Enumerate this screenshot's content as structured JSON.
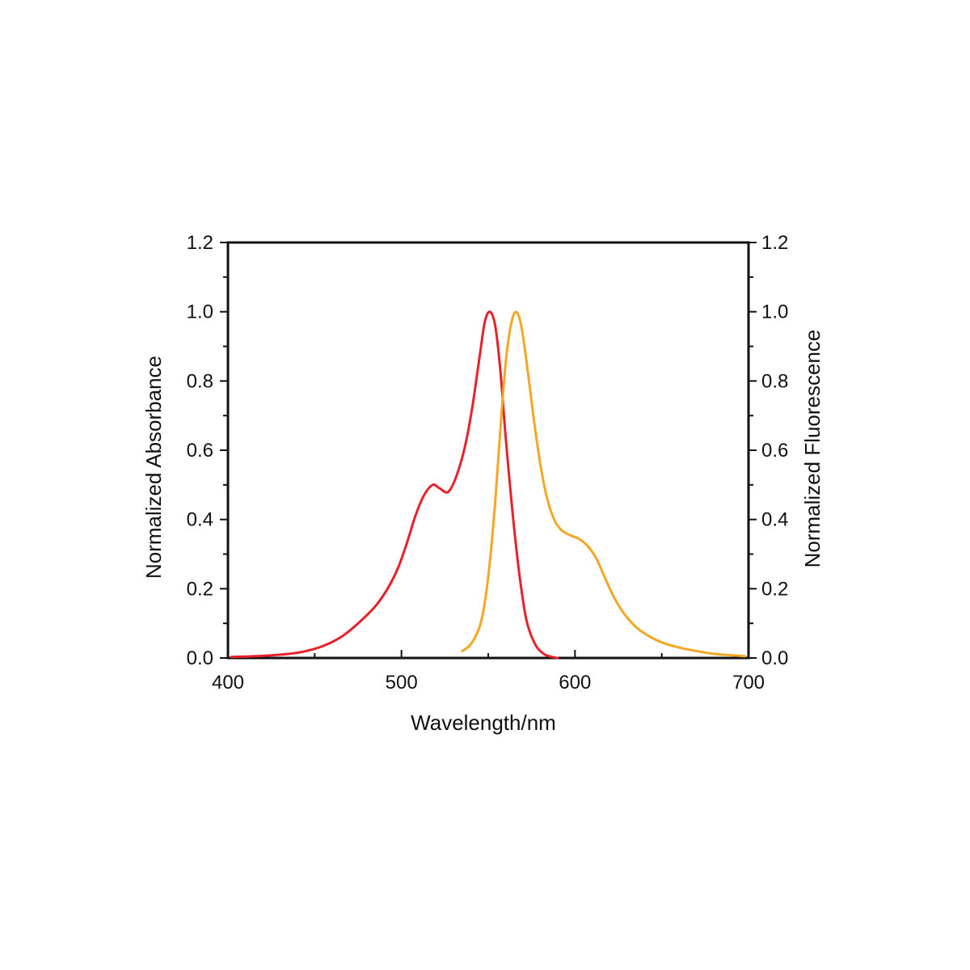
{
  "chart_data": {
    "type": "line",
    "title": "",
    "xlabel": "Wavelength/nm",
    "ylabel_left": "Normalized Absorbance",
    "ylabel_right": "Normalized Fluorescence",
    "xlim": [
      400,
      700
    ],
    "ylim": [
      0.0,
      1.2
    ],
    "x_ticks": [
      400,
      500,
      600,
      700
    ],
    "x_tick_labels": [
      "400",
      "500",
      "600",
      "700"
    ],
    "y_ticks": [
      0.0,
      0.2,
      0.4,
      0.6,
      0.8,
      1.0,
      1.2
    ],
    "y_tick_labels": [
      "0.0",
      "0.2",
      "0.4",
      "0.6",
      "0.8",
      "1.0",
      "1.2"
    ],
    "grid": false,
    "series": [
      {
        "color": "#e8202a",
        "x": [
          402,
          420,
          435,
          445,
          455,
          465,
          475,
          485,
          492,
          498,
          503,
          508,
          513,
          518,
          522,
          527,
          532,
          537,
          541,
          545,
          548,
          551,
          554,
          557,
          560,
          564,
          568,
          572,
          577,
          582,
          586,
          590
        ],
        "y": [
          0.003,
          0.006,
          0.012,
          0.02,
          0.035,
          0.06,
          0.1,
          0.15,
          0.2,
          0.26,
          0.33,
          0.41,
          0.47,
          0.5,
          0.49,
          0.48,
          0.53,
          0.62,
          0.73,
          0.87,
          0.97,
          1.0,
          0.96,
          0.83,
          0.64,
          0.42,
          0.24,
          0.11,
          0.04,
          0.012,
          0.004,
          0.0
        ]
      },
      {
        "color": "#f5a623",
        "x": [
          535,
          540,
          545,
          548,
          551,
          554,
          557,
          560,
          563,
          566,
          569,
          572,
          576,
          580,
          584,
          588,
          592,
          597,
          602,
          607,
          612,
          617,
          622,
          628,
          635,
          642,
          650,
          660,
          670,
          680,
          690,
          698
        ],
        "y": [
          0.02,
          0.04,
          0.09,
          0.16,
          0.28,
          0.45,
          0.66,
          0.85,
          0.96,
          1.0,
          0.96,
          0.86,
          0.7,
          0.56,
          0.46,
          0.4,
          0.37,
          0.355,
          0.345,
          0.325,
          0.29,
          0.235,
          0.18,
          0.13,
          0.09,
          0.065,
          0.045,
          0.03,
          0.02,
          0.012,
          0.008,
          0.005
        ]
      }
    ]
  }
}
